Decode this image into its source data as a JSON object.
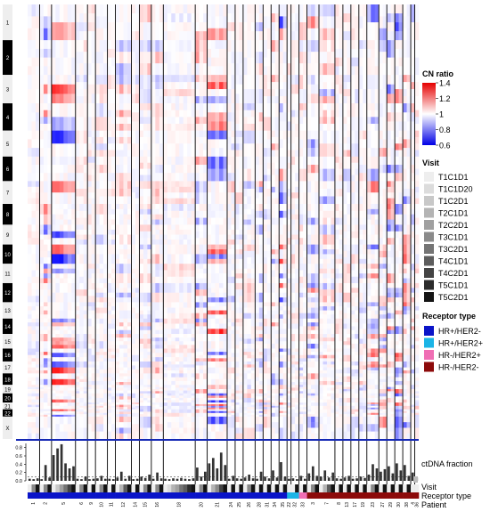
{
  "chart_data": {
    "type": "heatmap",
    "chromosomes": [
      "1",
      "2",
      "3",
      "4",
      "5",
      "6",
      "7",
      "8",
      "9",
      "10",
      "11",
      "12",
      "13",
      "14",
      "15",
      "16",
      "17",
      "18",
      "19",
      "20",
      "21",
      "22",
      "X"
    ],
    "colorbar": {
      "title": "CN ratio",
      "ticks": [
        "1.4",
        "1.2",
        "1",
        "0.8",
        "0.6"
      ],
      "range": [
        0.6,
        1.4
      ],
      "low_color": "#1a1aff",
      "mid_color": "#ffffff",
      "high_color": "#ff1a1a"
    },
    "visit_legend": {
      "title": "Visit",
      "items": [
        {
          "label": "T1C1D1",
          "color": "#eeeeee"
        },
        {
          "label": "T1C1D20",
          "color": "#dcdcdc"
        },
        {
          "label": "T1C2D1",
          "color": "#c8c8c8"
        },
        {
          "label": "T2C1D1",
          "color": "#b4b4b4"
        },
        {
          "label": "T2C2D1",
          "color": "#a0a0a0"
        },
        {
          "label": "T3C1D1",
          "color": "#8a8a8a"
        },
        {
          "label": "T3C2D1",
          "color": "#747474"
        },
        {
          "label": "T4C1D1",
          "color": "#5c5c5c"
        },
        {
          "label": "T4C2D1",
          "color": "#444444"
        },
        {
          "label": "T5C1D1",
          "color": "#2c2c2c"
        },
        {
          "label": "T5C2D1",
          "color": "#141414"
        }
      ]
    },
    "receptor_legend": {
      "title": "Receptor type",
      "items": [
        {
          "label": "HR+/HER2-",
          "color": "#0a14c8"
        },
        {
          "label": "HR+/HER2+",
          "color": "#1ab4e6"
        },
        {
          "label": "HR-/HER2+",
          "color": "#f06eb4"
        },
        {
          "label": "HR-/HER2-",
          "color": "#8c0a0a"
        }
      ]
    },
    "row_labels": {
      "ctdna": "ctDNA fraction",
      "visit": "Visit",
      "receptor": "Receptor type",
      "patient": "Patient"
    },
    "ctdna_axis": {
      "ticks": [
        "0.8",
        "0.6",
        "0.4",
        "0.2",
        "0.0"
      ],
      "range": [
        0,
        0.9
      ],
      "threshold": 0.1
    },
    "patients": [
      {
        "label": "1",
        "samples": 3,
        "receptor": "HR+/HER2-",
        "ctdna": [
          0.05,
          0.04,
          0.06
        ]
      },
      {
        "label": "2",
        "samples": 3,
        "receptor": "HR+/HER2-",
        "ctdna": [
          0.04,
          0.38,
          0.08
        ]
      },
      {
        "label": "5",
        "samples": 6,
        "receptor": "HR+/HER2-",
        "ctdna": [
          0.62,
          0.78,
          0.88,
          0.42,
          0.3,
          0.35
        ]
      },
      {
        "label": "6",
        "samples": 3,
        "receptor": "HR+/HER2-",
        "ctdna": [
          0.05,
          0.04,
          0.1
        ]
      },
      {
        "label": "9",
        "samples": 2,
        "receptor": "HR+/HER2-",
        "ctdna": [
          0.04,
          0.05
        ]
      },
      {
        "label": "10",
        "samples": 3,
        "receptor": "HR+/HER2-",
        "ctdna": [
          0.06,
          0.12,
          0.05
        ]
      },
      {
        "label": "11",
        "samples": 2,
        "receptor": "HR+/HER2-",
        "ctdna": [
          0.05,
          0.04
        ]
      },
      {
        "label": "12",
        "samples": 4,
        "receptor": "HR+/HER2-",
        "ctdna": [
          0.08,
          0.22,
          0.05,
          0.12
        ]
      },
      {
        "label": "14",
        "samples": 2,
        "receptor": "HR+/HER2-",
        "ctdna": [
          0.04,
          0.05
        ]
      },
      {
        "label": "15",
        "samples": 3,
        "receptor": "HR+/HER2-",
        "ctdna": [
          0.1,
          0.07,
          0.15
        ]
      },
      {
        "label": "16",
        "samples": 3,
        "receptor": "HR+/HER2-",
        "ctdna": [
          0.05,
          0.2,
          0.06
        ]
      },
      {
        "label": "18",
        "samples": 8,
        "receptor": "HR+/HER2-",
        "ctdna": [
          0.05,
          0.04,
          0.06,
          0.05,
          0.07,
          0.05,
          0.04,
          0.06
        ]
      },
      {
        "label": "20",
        "samples": 3,
        "receptor": "HR+/HER2-",
        "ctdna": [
          0.32,
          0.1,
          0.22
        ]
      },
      {
        "label": "21",
        "samples": 5,
        "receptor": "HR+/HER2-",
        "ctdna": [
          0.42,
          0.55,
          0.3,
          0.68,
          0.38
        ]
      },
      {
        "label": "24",
        "samples": 2,
        "receptor": "HR+/HER2-",
        "ctdna": [
          0.05,
          0.12
        ]
      },
      {
        "label": "25",
        "samples": 2,
        "receptor": "HR+/HER2-",
        "ctdna": [
          0.06,
          0.05
        ]
      },
      {
        "label": "26",
        "samples": 3,
        "receptor": "HR+/HER2-",
        "ctdna": [
          0.08,
          0.15,
          0.06
        ]
      },
      {
        "label": "28",
        "samples": 2,
        "receptor": "HR+/HER2-",
        "ctdna": [
          0.05,
          0.22
        ]
      },
      {
        "label": "31",
        "samples": 2,
        "receptor": "HR+/HER2-",
        "ctdna": [
          0.1,
          0.06
        ]
      },
      {
        "label": "34",
        "samples": 2,
        "receptor": "HR+/HER2-",
        "ctdna": [
          0.25,
          0.08
        ]
      },
      {
        "label": "35",
        "samples": 2,
        "receptor": "HR+/HER2-",
        "ctdna": [
          0.45,
          0.1
        ]
      },
      {
        "label": "22",
        "samples": 1,
        "receptor": "HR+/HER2+",
        "ctdna": [
          0.05
        ]
      },
      {
        "label": "32",
        "samples": 2,
        "receptor": "HR+/HER2+",
        "ctdna": [
          0.06,
          0.04
        ]
      },
      {
        "label": "33",
        "samples": 2,
        "receptor": "HR-/HER2+",
        "ctdna": [
          0.12,
          0.05
        ]
      },
      {
        "label": "3",
        "samples": 3,
        "receptor": "HR-/HER2-",
        "ctdna": [
          0.18,
          0.35,
          0.12
        ]
      },
      {
        "label": "7",
        "samples": 4,
        "receptor": "HR-/HER2-",
        "ctdna": [
          0.1,
          0.25,
          0.08,
          0.2
        ]
      },
      {
        "label": "8",
        "samples": 2,
        "receptor": "HR-/HER2-",
        "ctdna": [
          0.06,
          0.05
        ]
      },
      {
        "label": "13",
        "samples": 2,
        "receptor": "HR-/HER2-",
        "ctdna": [
          0.08,
          0.12
        ]
      },
      {
        "label": "17",
        "samples": 2,
        "receptor": "HR-/HER2-",
        "ctdna": [
          0.05,
          0.06
        ]
      },
      {
        "label": "19",
        "samples": 2,
        "receptor": "HR-/HER2-",
        "ctdna": [
          0.1,
          0.07
        ]
      },
      {
        "label": "23",
        "samples": 3,
        "receptor": "HR-/HER2-",
        "ctdna": [
          0.15,
          0.4,
          0.3
        ]
      },
      {
        "label": "27",
        "samples": 2,
        "receptor": "HR-/HER2-",
        "ctdna": [
          0.22,
          0.28
        ]
      },
      {
        "label": "29",
        "samples": 2,
        "receptor": "HR-/HER2-",
        "ctdna": [
          0.35,
          0.18
        ]
      },
      {
        "label": "30",
        "samples": 2,
        "receptor": "HR-/HER2-",
        "ctdna": [
          0.42,
          0.25
        ]
      },
      {
        "label": "38",
        "samples": 2,
        "receptor": "HR-/HER2-",
        "ctdna": [
          0.38,
          0.12
        ]
      },
      {
        "label": "4",
        "samples": 1,
        "receptor": "HR-/HER2-",
        "ctdna": [
          0.2
        ]
      },
      {
        "label": "36",
        "samples": 1,
        "receptor": "HR-/HER2-",
        "ctdna": [
          0.08
        ]
      }
    ]
  }
}
